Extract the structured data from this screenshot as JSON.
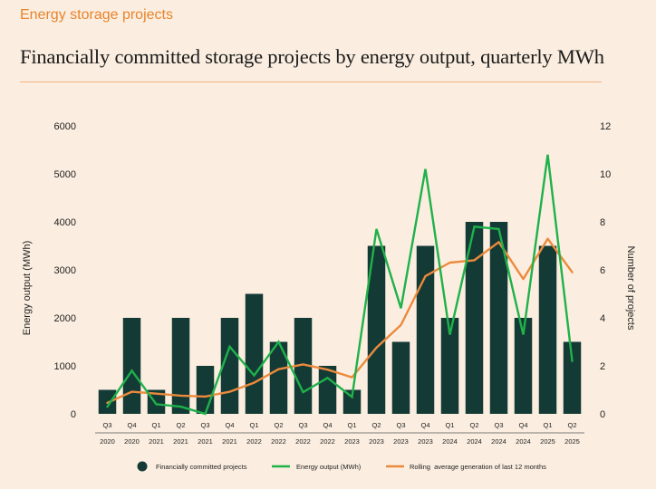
{
  "header": {
    "section_label": "Energy storage projects",
    "title": "Financially committed storage projects by energy output, quarterly MWh"
  },
  "colors": {
    "bars": "#143a36",
    "energy_line": "#1fb14a",
    "rolling_line": "#ec8a3c",
    "background": "#fbeee0",
    "rule": "#f0b27f"
  },
  "chart_data": {
    "type": "bar",
    "categories": [
      "Q3",
      "Q4",
      "Q1",
      "Q2",
      "Q3",
      "Q4",
      "Q1",
      "Q2",
      "Q3",
      "Q4",
      "Q1",
      "Q2",
      "Q3",
      "Q4",
      "Q1",
      "Q2",
      "Q3",
      "Q4",
      "Q1",
      "Q2"
    ],
    "years": [
      "2020",
      "2020",
      "2021",
      "2021",
      "2021",
      "2021",
      "2022",
      "2022",
      "2022",
      "2022",
      "2023",
      "2023",
      "2023",
      "2023",
      "2024",
      "2024",
      "2024",
      "2024",
      "2025",
      "2025"
    ],
    "series": [
      {
        "name": "Financially committed projects",
        "type": "bar",
        "axis": "right",
        "values": [
          1,
          4,
          1,
          4,
          2,
          4,
          5,
          3,
          4,
          2,
          1,
          7,
          3,
          7,
          4,
          8,
          8,
          4,
          7,
          3
        ]
      },
      {
        "name": "Energy output (MWh)",
        "type": "line",
        "axis": "left",
        "values": [
          150,
          900,
          200,
          150,
          0,
          1400,
          800,
          1500,
          450,
          750,
          350,
          3850,
          2200,
          5100,
          1650,
          3900,
          3850,
          1650,
          5400,
          1100
        ]
      },
      {
        "name": "Rolling  average generation of last 12 months",
        "type": "line",
        "axis": "left",
        "values": [
          230,
          460,
          420,
          380,
          360,
          460,
          650,
          930,
          1030,
          920,
          760,
          1380,
          1850,
          2870,
          3150,
          3200,
          3580,
          2810,
          3650,
          2950
        ]
      }
    ],
    "ylabel": "Energy output (MWh)",
    "y2label": "Number of projects",
    "ylim": [
      0,
      6000
    ],
    "y2lim": [
      0,
      12
    ],
    "yticks": [
      0,
      1000,
      2000,
      3000,
      4000,
      5000,
      6000
    ],
    "y2ticks": [
      0,
      2,
      4,
      6,
      8,
      10,
      12
    ],
    "grid": false,
    "legend_position": "bottom"
  }
}
